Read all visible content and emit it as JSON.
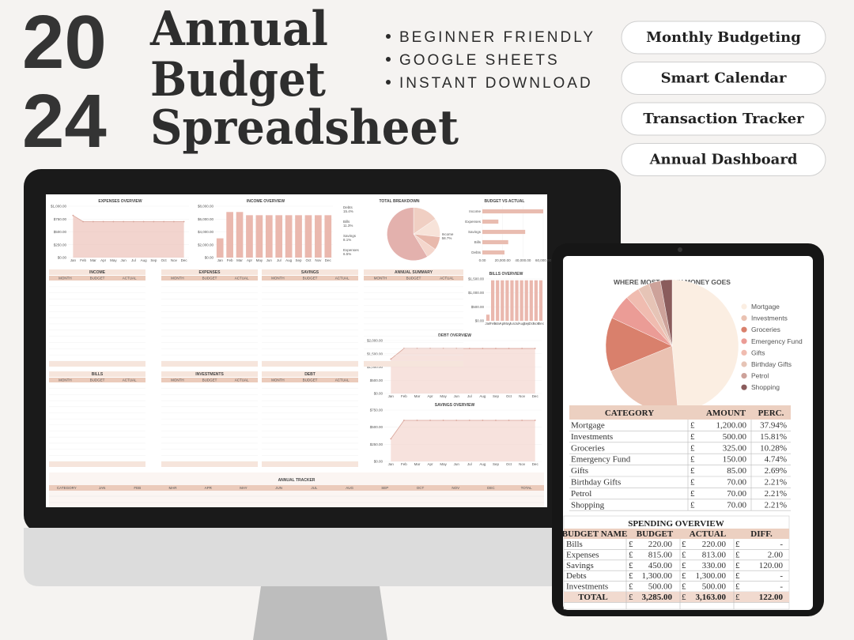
{
  "header": {
    "year_top": "20",
    "year_bottom": "24",
    "title_lines": [
      "Annual",
      "Budget",
      "Spreadsheet"
    ]
  },
  "features": [
    "BEGINNER FRIENDLY",
    "GOOGLE SHEETS",
    "INSTANT DOWNLOAD"
  ],
  "pills": [
    "Monthly Budgeting",
    "Smart Calendar",
    "Transaction Tracker",
    "Annual Dashboard"
  ],
  "monitor": {
    "tables": [
      "INCOME",
      "EXPENSES",
      "SAVINGS",
      "ANNUAL SUMMARY",
      "BILLS",
      "INVESTMENTS",
      "DEBT"
    ],
    "table_columns": [
      "MONTH",
      "BUDGET",
      "ACTUAL"
    ],
    "tracker_title": "ANNUAL TRACKER",
    "tracker_columns": [
      "CATEGORY",
      "JAN",
      "FEB",
      "MAR",
      "APR",
      "MAY",
      "JUN",
      "JUL",
      "AUG",
      "SEP",
      "OCT",
      "NOV",
      "DEC",
      "TOTAL"
    ]
  },
  "tablet": {
    "currency": "£",
    "category_table": {
      "columns": [
        "CATEGORY",
        "AMOUNT",
        "PERC."
      ],
      "perc": [
        "37.94%",
        "15.81%",
        "10.28%",
        "4.74%",
        "2.69%",
        "2.21%",
        "2.21%",
        "2.21%"
      ]
    },
    "spending": {
      "title": "SPENDING OVERVIEW",
      "columns": [
        "BUDGET NAME",
        "BUDGET",
        "ACTUAL",
        "DIFF."
      ],
      "rows": [
        [
          "Bills",
          "220.00",
          "220.00",
          "-"
        ],
        [
          "Expenses",
          "815.00",
          "813.00",
          "2.00"
        ],
        [
          "Savings",
          "450.00",
          "330.00",
          "120.00"
        ],
        [
          "Debts",
          "1,300.00",
          "1,300.00",
          "-"
        ],
        [
          "Investments",
          "500.00",
          "500.00",
          "-"
        ]
      ],
      "total": [
        "TOTAL",
        "3,285.00",
        "3,163.00",
        "122.00"
      ]
    }
  },
  "chart_data": [
    {
      "type": "pie",
      "title": "WHERE MOST OF MY MONEY GOES",
      "categories": [
        "Mortgage",
        "Investments",
        "Groceries",
        "Emergency Fund",
        "Gifts",
        "Birthday Gifts",
        "Petrol",
        "Shopping"
      ],
      "values": [
        1200,
        500,
        325,
        150,
        85,
        70,
        70,
        70
      ],
      "value_labels": [
        "1,200.00",
        "500.00",
        "325.00",
        "150.00",
        "85.00",
        "70.00",
        "70.00",
        "70.00"
      ],
      "colors": [
        "#fbeee2",
        "#eac2b2",
        "#d9806c",
        "#eb9c96",
        "#f0bcb0",
        "#e6c4b6",
        "#cda29a",
        "#8a5c5c"
      ]
    },
    {
      "type": "area",
      "title": "EXPENSES OVERVIEW",
      "color": "#eab8ae",
      "categories": [
        "Jan",
        "Feb",
        "Mar",
        "Apr",
        "May",
        "Jun",
        "Jul",
        "Aug",
        "Sep",
        "Oct",
        "Nov",
        "Dec"
      ],
      "values": [
        820,
        700,
        700,
        700,
        700,
        700,
        700,
        700,
        700,
        700,
        700,
        700
      ],
      "ylim": [
        0,
        1000
      ],
      "yticks": [
        {
          "value": 0,
          "label": "$0.00"
        },
        {
          "value": 250,
          "label": "$250.00"
        },
        {
          "value": 500,
          "label": "$500.00"
        },
        {
          "value": 750,
          "label": "$750.00"
        },
        {
          "value": 1000,
          "label": "$1,000.00"
        }
      ]
    },
    {
      "type": "bar",
      "title": "INCOME OVERVIEW",
      "color": "#eab8ae",
      "categories": [
        "Jan",
        "Feb",
        "Mar",
        "Apr",
        "May",
        "Jun",
        "Jul",
        "Aug",
        "Sep",
        "Oct",
        "Nov",
        "Dec"
      ],
      "values": [
        3000,
        7100,
        7100,
        6600,
        6600,
        6600,
        6600,
        6600,
        6600,
        6600,
        6600,
        6600
      ],
      "ylim": [
        0,
        8000
      ],
      "yticks": [
        {
          "value": 0,
          "label": "$0.00"
        },
        {
          "value": 2000,
          "label": "$2,000.00"
        },
        {
          "value": 4000,
          "label": "$4,000.00"
        },
        {
          "value": 6000,
          "label": "$6,000.00"
        },
        {
          "value": 8000,
          "label": "$8,000.00"
        }
      ]
    },
    {
      "type": "pie",
      "title": "TOTAL BREAKDOWN",
      "categories": [
        "Debts",
        "Bills",
        "Savings",
        "Expenses",
        "Income"
      ],
      "values": [
        15.4,
        11.3,
        8.1,
        6.5,
        58.7
      ],
      "value_labels": [
        "15.4%",
        "11.3%",
        "8.1%",
        "6.5%",
        "58.7%"
      ],
      "colors": [
        "#f0cfc3",
        "#f7e3d9",
        "#e8b9ac",
        "#f4d6cc",
        "#e3b1ad"
      ]
    },
    {
      "type": "hbar",
      "title": "BUDGET VS ACTUAL",
      "color": "#e9bcb0",
      "categories": [
        "Income",
        "Expenses",
        "Savings",
        "Bills",
        "Debts"
      ],
      "values": [
        60000,
        15800,
        42200,
        25500,
        21800
      ],
      "xlim": [
        0,
        60000
      ],
      "xticks": [
        {
          "value": 0,
          "label": "0.00"
        },
        {
          "value": 20000,
          "label": "20,000.00"
        },
        {
          "value": 40000,
          "label": "40,000.00"
        },
        {
          "value": 60000,
          "label": "60,000.00"
        }
      ]
    },
    {
      "type": "bar",
      "title": "BILLS OVERVIEW",
      "color": "#eab8ae",
      "categories": [
        "Jan",
        "Feb",
        "Mar",
        "Apr",
        "May",
        "Jun",
        "Jul",
        "Aug",
        "Sep",
        "Oct",
        "Nov",
        "Dec"
      ],
      "values": [
        220,
        1450,
        1450,
        1450,
        1450,
        1450,
        1450,
        1450,
        1450,
        1450,
        1450,
        1450
      ],
      "ylim": [
        0,
        1500
      ],
      "yticks": [
        {
          "value": 0,
          "label": "$0.00"
        },
        {
          "value": 500,
          "label": "$500.00"
        },
        {
          "value": 1000,
          "label": "$1,000.00"
        },
        {
          "value": 1500,
          "label": "$1,500.00"
        }
      ]
    },
    {
      "type": "area",
      "title": "DEBT OVERVIEW",
      "color": "#f1cfc6",
      "categories": [
        "Jan",
        "Feb",
        "Mar",
        "Apr",
        "May",
        "Jun",
        "Jul",
        "Aug",
        "Sep",
        "Oct",
        "Nov",
        "Dec"
      ],
      "values": [
        1300,
        1700,
        1700,
        1700,
        1700,
        1700,
        1700,
        1700,
        1700,
        1700,
        1700,
        1700
      ],
      "ylim": [
        0,
        2000
      ],
      "yticks": [
        {
          "value": 0,
          "label": "$0.00"
        },
        {
          "value": 500,
          "label": "$500.00"
        },
        {
          "value": 1000,
          "label": "$1,000.00"
        },
        {
          "value": 1500,
          "label": "$1,500.00"
        },
        {
          "value": 2000,
          "label": "$2,000.00"
        }
      ]
    },
    {
      "type": "area",
      "title": "SAVINGS OVERVIEW",
      "color": "#f1cfc6",
      "categories": [
        "Jan",
        "Feb",
        "Mar",
        "Apr",
        "May",
        "Jun",
        "Jul",
        "Aug",
        "Sep",
        "Oct",
        "Nov",
        "Dec"
      ],
      "values": [
        330,
        600,
        600,
        600,
        600,
        600,
        600,
        600,
        600,
        600,
        600,
        600
      ],
      "ylim": [
        0,
        750
      ],
      "yticks": [
        {
          "value": 0,
          "label": "$0.00"
        },
        {
          "value": 250,
          "label": "$250.00"
        },
        {
          "value": 500,
          "label": "$500.00"
        },
        {
          "value": 750,
          "label": "$750.00"
        }
      ]
    }
  ]
}
